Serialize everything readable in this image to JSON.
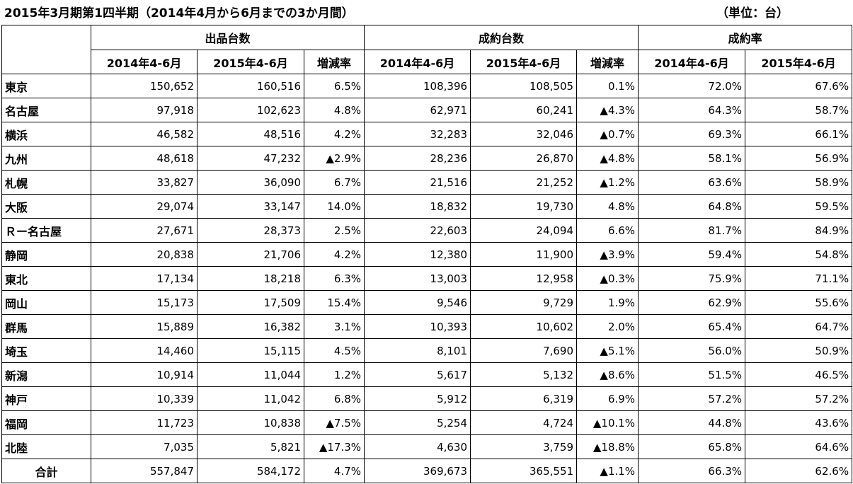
{
  "title": "2015年3月期第1四半期（2014年4月から6月までの3か月間）",
  "unit": "（単位：台）",
  "groups": [
    "出品台数",
    "成約台数",
    "成約率"
  ],
  "subheaders": [
    "2014年4-6月",
    "2015年4-6月",
    "増減率",
    "2014年4-6月",
    "2015年4-6月",
    "増減率",
    "2014年4-6月",
    "2015年4-6月"
  ],
  "rows": [
    {
      "name": "東京",
      "values": [
        "150,652",
        "160,516",
        "6.5%",
        "108,396",
        "108,505",
        "0.1%",
        "72.0%",
        "67.6%"
      ]
    },
    {
      "name": "名古屋",
      "values": [
        "97,918",
        "102,623",
        "4.8%",
        "62,971",
        "60,241",
        "▲4.3%",
        "64.3%",
        "58.7%"
      ]
    },
    {
      "name": "横浜",
      "values": [
        "46,582",
        "48,516",
        "4.2%",
        "32,283",
        "32,046",
        "▲0.7%",
        "69.3%",
        "66.1%"
      ]
    },
    {
      "name": "九州",
      "values": [
        "48,618",
        "47,232",
        "▲2.9%",
        "28,236",
        "26,870",
        "▲4.8%",
        "58.1%",
        "56.9%"
      ]
    },
    {
      "name": "札幌",
      "values": [
        "33,827",
        "36,090",
        "6.7%",
        "21,516",
        "21,252",
        "▲1.2%",
        "63.6%",
        "58.9%"
      ]
    },
    {
      "name": "大阪",
      "values": [
        "29,074",
        "33,147",
        "14.0%",
        "18,832",
        "19,730",
        "4.8%",
        "64.8%",
        "59.5%"
      ]
    },
    {
      "name": "Ｒー名古屋",
      "values": [
        "27,671",
        "28,373",
        "2.5%",
        "22,603",
        "24,094",
        "6.6%",
        "81.7%",
        "84.9%"
      ]
    },
    {
      "name": "静岡",
      "values": [
        "20,838",
        "21,706",
        "4.2%",
        "12,380",
        "11,900",
        "▲3.9%",
        "59.4%",
        "54.8%"
      ]
    },
    {
      "name": "東北",
      "values": [
        "17,134",
        "18,218",
        "6.3%",
        "13,003",
        "12,958",
        "▲0.3%",
        "75.9%",
        "71.1%"
      ]
    },
    {
      "name": "岡山",
      "values": [
        "15,173",
        "17,509",
        "15.4%",
        "9,546",
        "9,729",
        "1.9%",
        "62.9%",
        "55.6%"
      ]
    },
    {
      "name": "群馬",
      "values": [
        "15,889",
        "16,382",
        "3.1%",
        "10,393",
        "10,602",
        "2.0%",
        "65.4%",
        "64.7%"
      ]
    },
    {
      "name": "埼玉",
      "values": [
        "14,460",
        "15,115",
        "4.5%",
        "8,101",
        "7,690",
        "▲5.1%",
        "56.0%",
        "50.9%"
      ]
    },
    {
      "name": "新潟",
      "values": [
        "10,914",
        "11,044",
        "1.2%",
        "5,617",
        "5,132",
        "▲8.6%",
        "51.5%",
        "46.5%"
      ]
    },
    {
      "name": "神戸",
      "values": [
        "10,339",
        "11,042",
        "6.8%",
        "5,912",
        "6,319",
        "6.9%",
        "57.2%",
        "57.2%"
      ]
    },
    {
      "name": "福岡",
      "values": [
        "11,723",
        "10,838",
        "▲7.5%",
        "5,254",
        "4,724",
        "▲10.1%",
        "44.8%",
        "43.6%"
      ]
    },
    {
      "name": "北陸",
      "values": [
        "7,035",
        "5,821",
        "▲17.3%",
        "4,630",
        "3,759",
        "▲18.8%",
        "65.8%",
        "64.6%"
      ]
    }
  ],
  "total": {
    "name": "合計",
    "values": [
      "557,847",
      "584,172",
      "4.7%",
      "369,673",
      "365,551",
      "▲1.1%",
      "66.3%",
      "62.6%"
    ]
  }
}
